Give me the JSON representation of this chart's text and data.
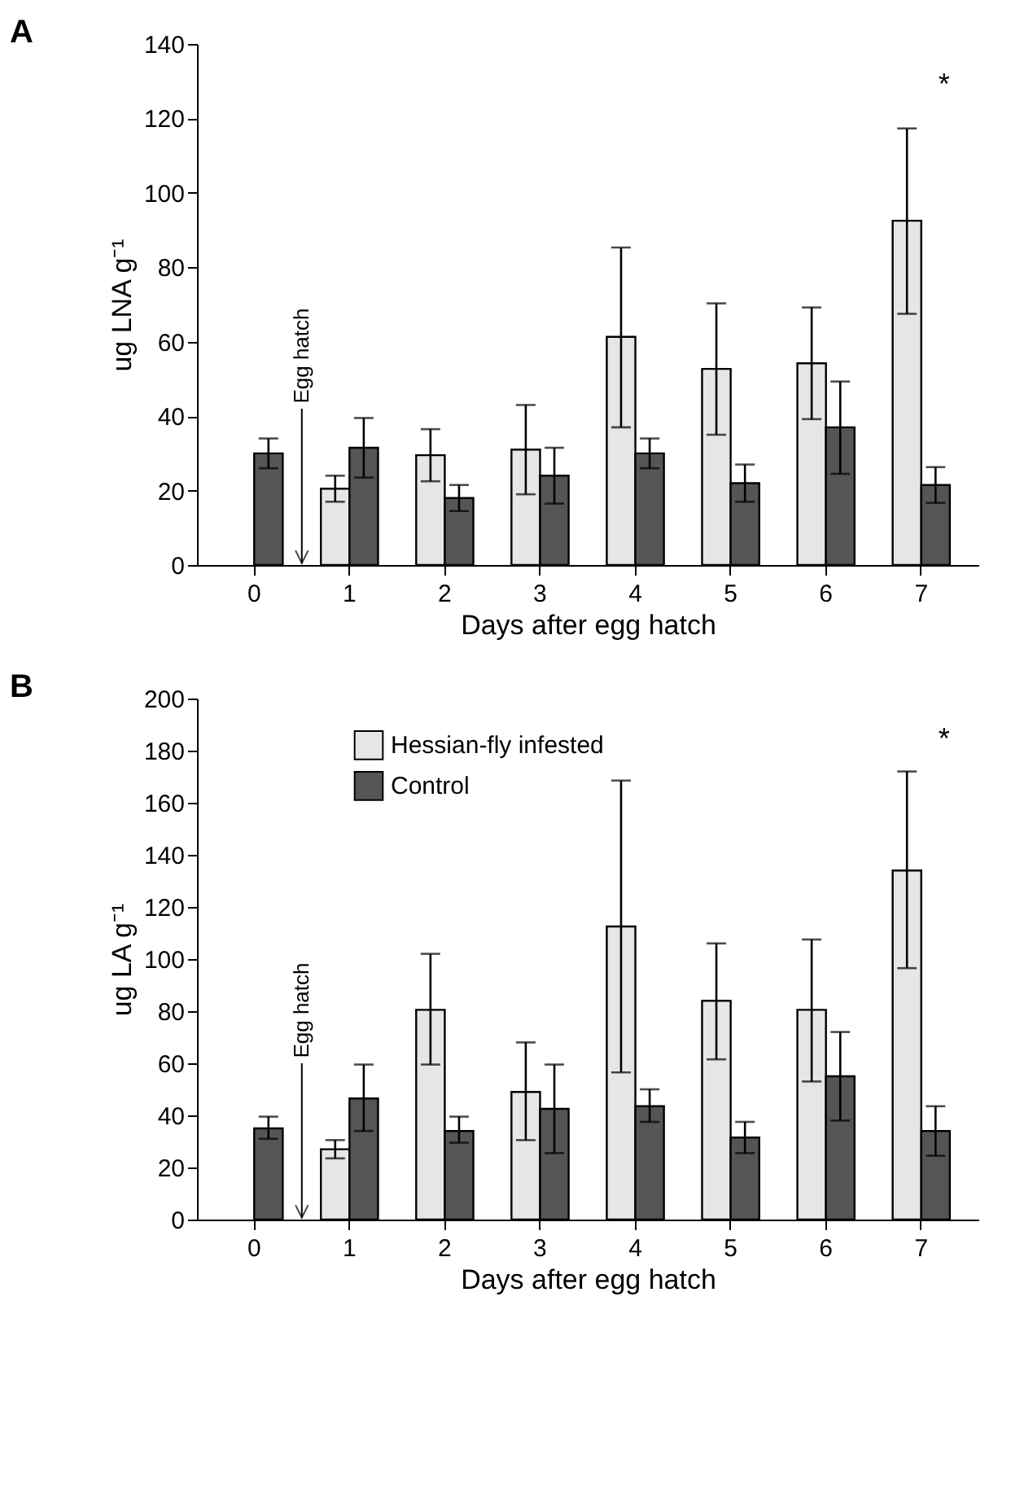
{
  "chart_data": [
    {
      "type": "bar",
      "title": "A",
      "xlabel": "Days after egg hatch",
      "ylabel": "ug LNA g⁻¹",
      "categories": [
        "0",
        "1",
        "2",
        "3",
        "4",
        "5",
        "6",
        "7"
      ],
      "series": [
        {
          "color": "#e6e6e6",
          "values": [
            null,
            20.5,
            29.5,
            31,
            61.3,
            52.7,
            54.2,
            92.5
          ],
          "errors": [
            null,
            [
              17,
              24
            ],
            [
              22.5,
              36.5
            ],
            [
              19,
              43
            ],
            [
              37,
              85.3
            ],
            [
              35,
              70.3
            ],
            [
              39.2,
              69.2
            ],
            [
              67.5,
              117.3
            ]
          ]
        },
        {
          "color": "#555555",
          "values": [
            30,
            31.5,
            18,
            24,
            30,
            22,
            37,
            21.5
          ],
          "errors": [
            [
              26,
              34
            ],
            [
              23.5,
              39.5
            ],
            [
              14.5,
              21.5
            ],
            [
              16.5,
              31.5
            ],
            [
              26,
              34
            ],
            [
              17,
              27
            ],
            [
              24.5,
              49.3
            ],
            [
              16.7,
              26.3
            ]
          ]
        }
      ],
      "ylim": [
        0,
        140
      ],
      "yticks": [
        0,
        20,
        40,
        60,
        80,
        100,
        120,
        140
      ],
      "grid": false,
      "legend": false,
      "annotations": [
        "*",
        "Egg hatch"
      ]
    },
    {
      "type": "bar",
      "title": "B",
      "xlabel": "Days after egg hatch",
      "ylabel": "ug LA g⁻¹",
      "categories": [
        "0",
        "1",
        "2",
        "3",
        "4",
        "5",
        "6",
        "7"
      ],
      "series": [
        {
          "name": "Hessian-fly infested",
          "color": "#e6e6e6",
          "values": [
            null,
            27,
            80.5,
            49,
            112.5,
            84,
            80.5,
            134
          ],
          "errors": [
            null,
            [
              23.5,
              30.5
            ],
            [
              59.5,
              102
            ],
            [
              30.5,
              68
            ],
            [
              56.5,
              168.5
            ],
            [
              61.5,
              106
            ],
            [
              53,
              107.5
            ],
            [
              96.5,
              172
            ]
          ]
        },
        {
          "name": "Control",
          "color": "#555555",
          "values": [
            35,
            46.5,
            34,
            42.5,
            43.5,
            31.5,
            55,
            34
          ],
          "errors": [
            [
              31,
              39.5
            ],
            [
              34,
              59.5
            ],
            [
              29.5,
              39.5
            ],
            [
              25.5,
              59.5
            ],
            [
              37.5,
              50
            ],
            [
              25.5,
              37.5
            ],
            [
              38,
              72
            ],
            [
              24.5,
              43.5
            ]
          ]
        }
      ],
      "ylim": [
        0,
        200
      ],
      "yticks": [
        0,
        20,
        40,
        60,
        80,
        100,
        120,
        140,
        160,
        180,
        200
      ],
      "grid": false,
      "legend": "top left",
      "annotations": [
        "*",
        "Egg hatch"
      ]
    }
  ]
}
